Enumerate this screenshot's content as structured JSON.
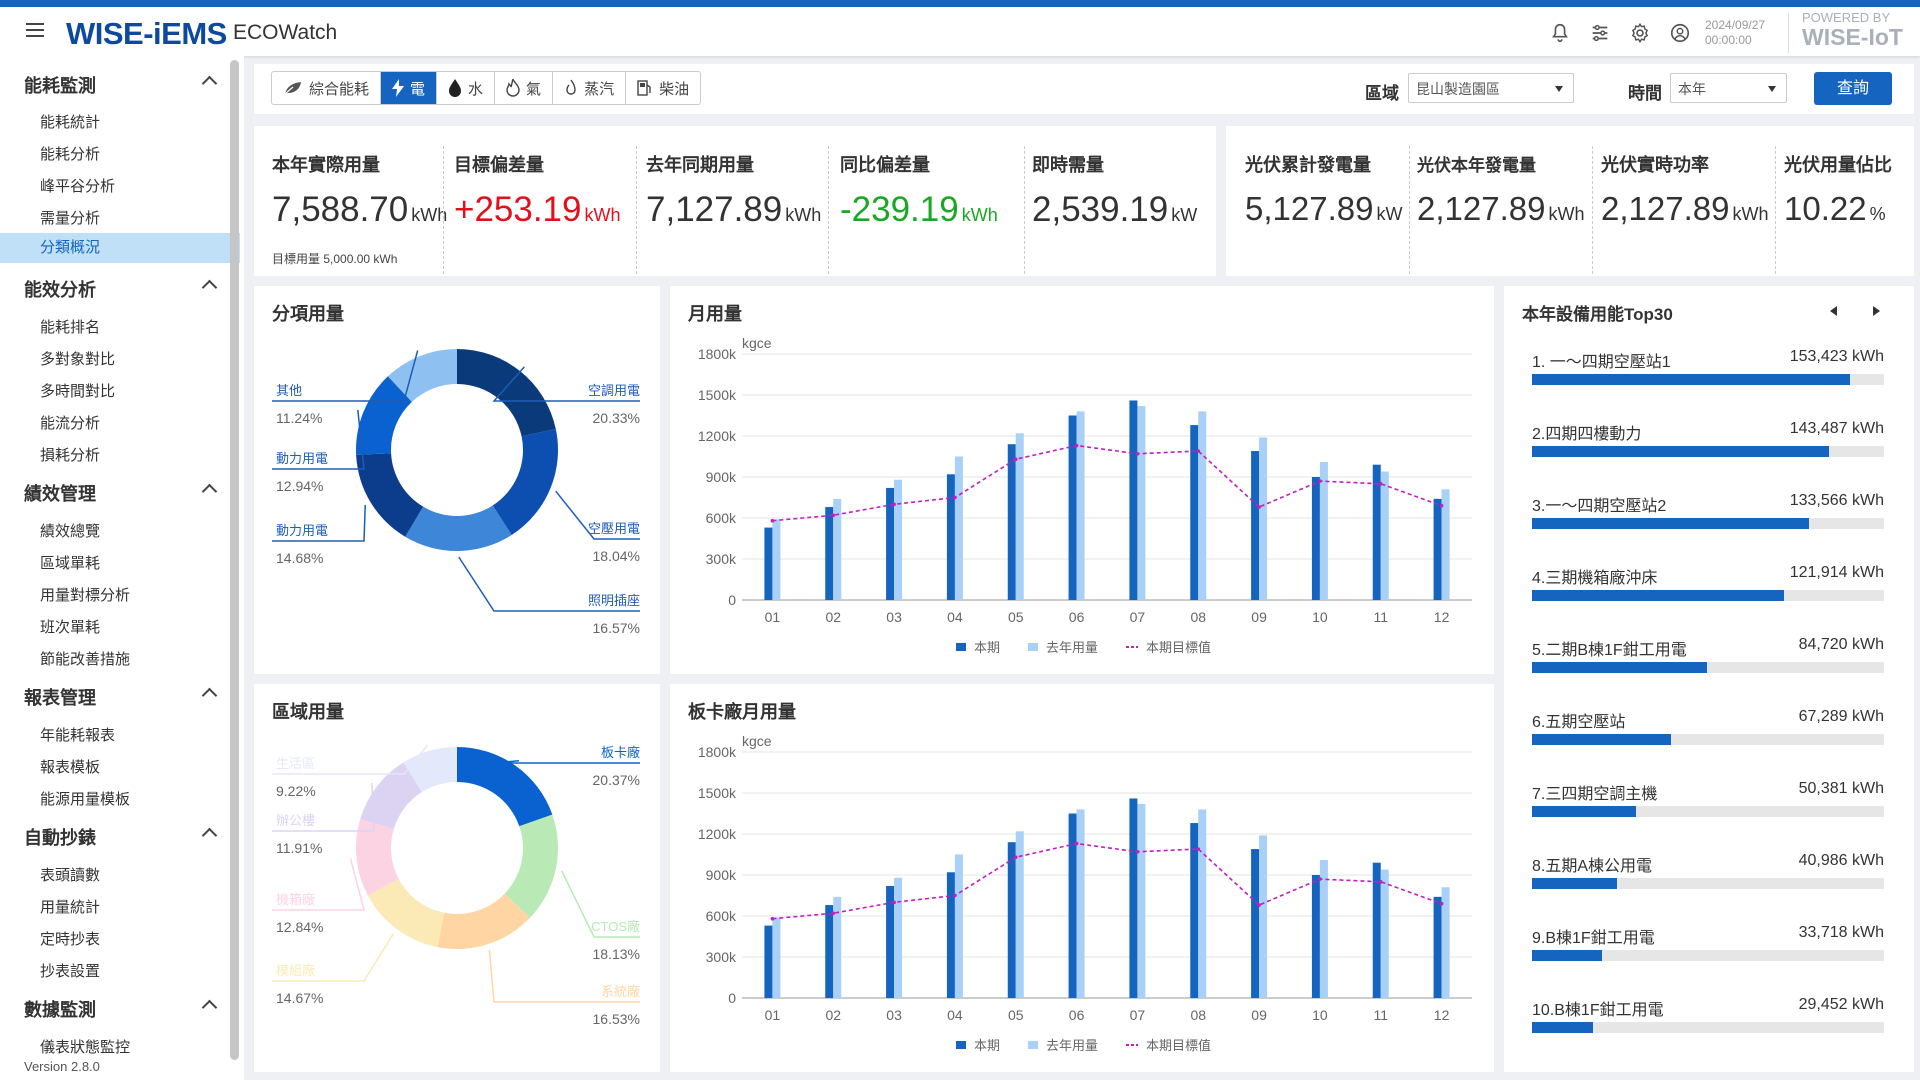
{
  "header": {
    "logo": "WISE-iEMS",
    "app_name": "ECOWatch",
    "date": "2024/09/27",
    "time": "00:00:00",
    "powered_by": "POWERED BY",
    "powered_brand": "WISE-IoT"
  },
  "sidebar": {
    "groups": [
      {
        "label": "能耗監測",
        "items": [
          "能耗統計",
          "能耗分析",
          "峰平谷分析",
          "需量分析",
          "分類概況"
        ]
      },
      {
        "label": "能效分析",
        "items": [
          "能耗排名",
          "多對象對比",
          "多時間對比",
          "能流分析",
          "損耗分析"
        ]
      },
      {
        "label": "績效管理",
        "items": [
          "績效總覽",
          "區域單耗",
          "用量對標分析",
          "班次單耗",
          "節能改善措施"
        ]
      },
      {
        "label": "報表管理",
        "items": [
          "年能耗報表",
          "報表模板",
          "能源用量模板"
        ]
      },
      {
        "label": "自動抄錶",
        "items": [
          "表頭讀數",
          "用量統計",
          "定時抄表",
          "抄表設置"
        ]
      },
      {
        "label": "數據監測",
        "items": [
          "儀表狀態監控"
        ]
      }
    ],
    "active_item": "分類概況",
    "version": "Version 2.8.0"
  },
  "toolbar": {
    "tabs": [
      "綜合能耗",
      "電",
      "水",
      "氣",
      "蒸汽",
      "柴油"
    ],
    "active_tab": "電",
    "area_label": "區域",
    "area_value": "昆山製造園區",
    "time_label": "時間",
    "time_value": "本年",
    "query_label": "查詢"
  },
  "kpis": [
    {
      "label": "本年實際用量",
      "value": "7,588.70",
      "unit": "kWh",
      "color": "#333333"
    },
    {
      "label": "目標偏差量",
      "value": "+253.19",
      "unit": "kWh",
      "color": "#e0101d"
    },
    {
      "label": "去年同期用量",
      "value": "7,127.89",
      "unit": "kWh",
      "color": "#333333"
    },
    {
      "label": "同比偏差量",
      "value": "-239.19",
      "unit": "kWh",
      "color": "#1aa823"
    },
    {
      "label": "即時需量",
      "value": "2,539.19",
      "unit": "kW",
      "color": "#333333"
    }
  ],
  "target_text": "目標用量 5,000.00 kWh",
  "pv_kpis": [
    {
      "label": "光伏累計發電量",
      "value": "5,127.89",
      "unit": "kW"
    },
    {
      "label": "光伏本年發電量",
      "value": "2,127.89",
      "unit": "kWh"
    },
    {
      "label": "光伏實時功率",
      "value": "2,127.89",
      "unit": "kWh"
    },
    {
      "label": "光伏用量佔比",
      "value": "10.22",
      "unit": "%"
    }
  ],
  "donut1": {
    "title": "分項用量",
    "slices": [
      {
        "label": "空調用電",
        "pct": "20.33%",
        "value": 20.33,
        "color": "#0a3a7a"
      },
      {
        "label": "空壓用電",
        "pct": "18.04%",
        "value": 18.04,
        "color": "#0c4fb0"
      },
      {
        "label": "照明插座",
        "pct": "16.57%",
        "value": 16.57,
        "color": "#3d86d8"
      },
      {
        "label": "動力用電",
        "pct": "14.68%",
        "value": 14.68,
        "color": "#0b3d8c"
      },
      {
        "label": "動力用電",
        "pct": "12.94%",
        "value": 12.94,
        "color": "#0a62d0"
      },
      {
        "label": "其他",
        "pct": "11.24%",
        "value": 11.24,
        "color": "#8ec1f2"
      }
    ]
  },
  "donut2": {
    "title": "區域用量",
    "slices": [
      {
        "label": "板卡廠",
        "pct": "20.37%",
        "value": 20.37,
        "color": "#0a62d0"
      },
      {
        "label": "CTOS廠",
        "pct": "18.13%",
        "value": 18.13,
        "color": "#b9eab6"
      },
      {
        "label": "系統廠",
        "pct": "16.53%",
        "value": 16.53,
        "color": "#ffd6a3"
      },
      {
        "label": "模組廠",
        "pct": "14.67%",
        "value": 14.67,
        "color": "#fbe9b6"
      },
      {
        "label": "機箱廠",
        "pct": "12.84%",
        "value": 12.84,
        "color": "#fcd3e3"
      },
      {
        "label": "辦公樓",
        "pct": "11.91%",
        "value": 11.91,
        "color": "#dcd3f3"
      },
      {
        "label": "生活區",
        "pct": "9.22%",
        "value": 9.22,
        "color": "#e3e8fb"
      }
    ]
  },
  "chart_data": [
    {
      "type": "bar",
      "title": "月用量",
      "ylabel": "kgce",
      "ylim": [
        0,
        1800000
      ],
      "yticks": [
        "0",
        "300k",
        "600k",
        "900k",
        "1200k",
        "1500k",
        "1800k"
      ],
      "categories": [
        "01",
        "02",
        "03",
        "04",
        "05",
        "06",
        "07",
        "08",
        "09",
        "10",
        "11",
        "12"
      ],
      "series": [
        {
          "name": "本期",
          "type": "bar",
          "color": "#1565c0",
          "values": [
            530000,
            680000,
            820000,
            920000,
            1140000,
            1350000,
            1460000,
            1280000,
            1090000,
            900000,
            990000,
            740000
          ]
        },
        {
          "name": "去年用量",
          "type": "bar",
          "color": "#a9d1f7",
          "values": [
            590000,
            740000,
            880000,
            1050000,
            1220000,
            1380000,
            1420000,
            1380000,
            1190000,
            1010000,
            940000,
            810000
          ]
        },
        {
          "name": "本期目標值",
          "type": "line",
          "color": "#c21ec2",
          "values": [
            580000,
            620000,
            700000,
            750000,
            1030000,
            1130000,
            1070000,
            1090000,
            680000,
            870000,
            850000,
            690000
          ]
        }
      ]
    },
    {
      "type": "bar",
      "title": "板卡廠月用量",
      "ylabel": "kgce",
      "ylim": [
        0,
        1800000
      ],
      "yticks": [
        "0",
        "300k",
        "600k",
        "900k",
        "1200k",
        "1500k",
        "1800k"
      ],
      "categories": [
        "01",
        "02",
        "03",
        "04",
        "05",
        "06",
        "07",
        "08",
        "09",
        "10",
        "11",
        "12"
      ],
      "series": [
        {
          "name": "本期",
          "type": "bar",
          "color": "#1565c0",
          "values": [
            530000,
            680000,
            820000,
            920000,
            1140000,
            1350000,
            1460000,
            1280000,
            1090000,
            900000,
            990000,
            740000
          ]
        },
        {
          "name": "去年用量",
          "type": "bar",
          "color": "#a9d1f7",
          "values": [
            590000,
            740000,
            880000,
            1050000,
            1220000,
            1380000,
            1420000,
            1380000,
            1190000,
            1010000,
            940000,
            810000
          ]
        },
        {
          "name": "本期目標值",
          "type": "line",
          "color": "#c21ec2",
          "values": [
            580000,
            620000,
            700000,
            750000,
            1030000,
            1130000,
            1070000,
            1090000,
            680000,
            870000,
            850000,
            690000
          ]
        }
      ]
    }
  ],
  "top30": {
    "title": "本年設備用能Top30",
    "max": 170000,
    "items": [
      {
        "name": "1. 一～四期空壓站1",
        "value": "153,423 kWh",
        "num": 153423
      },
      {
        "name": "2.四期四樓動力",
        "value": "143,487 kWh",
        "num": 143487
      },
      {
        "name": "3.一～四期空壓站2",
        "value": "133,566 kWh",
        "num": 133566
      },
      {
        "name": "4.三期機箱廠沖床",
        "value": "121,914 kWh",
        "num": 121914
      },
      {
        "name": "5.二期B棟1F鉗工用電",
        "value": "84,720 kWh",
        "num": 84720
      },
      {
        "name": "6.五期空壓站",
        "value": "67,289 kWh",
        "num": 67289
      },
      {
        "name": "7.三四期空調主機",
        "value": "50,381 kWh",
        "num": 50381
      },
      {
        "name": "8.五期A棟公用電",
        "value": "40,986 kWh",
        "num": 40986
      },
      {
        "name": "9.B棟1F鉗工用電",
        "value": "33,718 kWh",
        "num": 33718
      },
      {
        "name": "10.B棟1F鉗工用電",
        "value": "29,452 kWh",
        "num": 29452
      }
    ]
  }
}
